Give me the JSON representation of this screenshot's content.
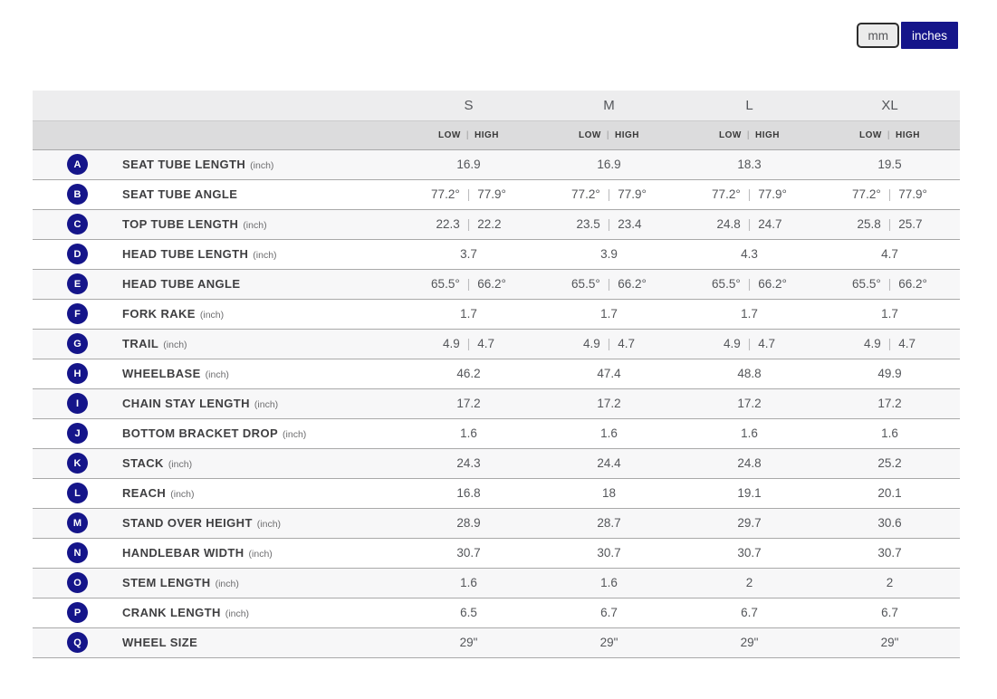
{
  "toggle": {
    "mm_label": "mm",
    "inches_label": "inches",
    "active": "inches"
  },
  "colors": {
    "accent_navy": "#15158a",
    "header_bg": "#ededee",
    "subheader_bg": "#dcdcdd",
    "zebra_bg": "#f7f7f8"
  },
  "table": {
    "sizes": [
      "S",
      "M",
      "L",
      "XL"
    ],
    "subheader": {
      "low": "LOW",
      "separator": "|",
      "high": "HIGH"
    },
    "rows": [
      {
        "letter": "A",
        "label": "SEAT TUBE LENGTH",
        "unit": "(inch)",
        "values": [
          [
            "16.9"
          ],
          [
            "16.9"
          ],
          [
            "18.3"
          ],
          [
            "19.5"
          ]
        ]
      },
      {
        "letter": "B",
        "label": "SEAT TUBE ANGLE",
        "unit": "",
        "values": [
          [
            "77.2°",
            "77.9°"
          ],
          [
            "77.2°",
            "77.9°"
          ],
          [
            "77.2°",
            "77.9°"
          ],
          [
            "77.2°",
            "77.9°"
          ]
        ]
      },
      {
        "letter": "C",
        "label": "TOP TUBE LENGTH",
        "unit": "(inch)",
        "values": [
          [
            "22.3",
            "22.2"
          ],
          [
            "23.5",
            "23.4"
          ],
          [
            "24.8",
            "24.7"
          ],
          [
            "25.8",
            "25.7"
          ]
        ]
      },
      {
        "letter": "D",
        "label": "HEAD TUBE LENGTH",
        "unit": "(inch)",
        "values": [
          [
            "3.7"
          ],
          [
            "3.9"
          ],
          [
            "4.3"
          ],
          [
            "4.7"
          ]
        ]
      },
      {
        "letter": "E",
        "label": "HEAD TUBE ANGLE",
        "unit": "",
        "values": [
          [
            "65.5°",
            "66.2°"
          ],
          [
            "65.5°",
            "66.2°"
          ],
          [
            "65.5°",
            "66.2°"
          ],
          [
            "65.5°",
            "66.2°"
          ]
        ]
      },
      {
        "letter": "F",
        "label": "FORK RAKE",
        "unit": "(inch)",
        "values": [
          [
            "1.7"
          ],
          [
            "1.7"
          ],
          [
            "1.7"
          ],
          [
            "1.7"
          ]
        ]
      },
      {
        "letter": "G",
        "label": "TRAIL",
        "unit": "(inch)",
        "values": [
          [
            "4.9",
            "4.7"
          ],
          [
            "4.9",
            "4.7"
          ],
          [
            "4.9",
            "4.7"
          ],
          [
            "4.9",
            "4.7"
          ]
        ]
      },
      {
        "letter": "H",
        "label": "WHEELBASE",
        "unit": "(inch)",
        "values": [
          [
            "46.2"
          ],
          [
            "47.4"
          ],
          [
            "48.8"
          ],
          [
            "49.9"
          ]
        ]
      },
      {
        "letter": "I",
        "label": "CHAIN STAY LENGTH",
        "unit": "(inch)",
        "values": [
          [
            "17.2"
          ],
          [
            "17.2"
          ],
          [
            "17.2"
          ],
          [
            "17.2"
          ]
        ]
      },
      {
        "letter": "J",
        "label": "BOTTOM BRACKET DROP",
        "unit": "(inch)",
        "values": [
          [
            "1.6"
          ],
          [
            "1.6"
          ],
          [
            "1.6"
          ],
          [
            "1.6"
          ]
        ]
      },
      {
        "letter": "K",
        "label": "STACK",
        "unit": "(inch)",
        "values": [
          [
            "24.3"
          ],
          [
            "24.4"
          ],
          [
            "24.8"
          ],
          [
            "25.2"
          ]
        ]
      },
      {
        "letter": "L",
        "label": "REACH",
        "unit": "(inch)",
        "values": [
          [
            "16.8"
          ],
          [
            "18"
          ],
          [
            "19.1"
          ],
          [
            "20.1"
          ]
        ]
      },
      {
        "letter": "M",
        "label": "STAND OVER HEIGHT",
        "unit": "(inch)",
        "values": [
          [
            "28.9"
          ],
          [
            "28.7"
          ],
          [
            "29.7"
          ],
          [
            "30.6"
          ]
        ]
      },
      {
        "letter": "N",
        "label": "HANDLEBAR WIDTH",
        "unit": "(inch)",
        "values": [
          [
            "30.7"
          ],
          [
            "30.7"
          ],
          [
            "30.7"
          ],
          [
            "30.7"
          ]
        ]
      },
      {
        "letter": "O",
        "label": "STEM LENGTH",
        "unit": "(inch)",
        "values": [
          [
            "1.6"
          ],
          [
            "1.6"
          ],
          [
            "2"
          ],
          [
            "2"
          ]
        ]
      },
      {
        "letter": "P",
        "label": "CRANK LENGTH",
        "unit": "(inch)",
        "values": [
          [
            "6.5"
          ],
          [
            "6.7"
          ],
          [
            "6.7"
          ],
          [
            "6.7"
          ]
        ]
      },
      {
        "letter": "Q",
        "label": "WHEEL SIZE",
        "unit": "",
        "values": [
          [
            "29\""
          ],
          [
            "29\""
          ],
          [
            "29\""
          ],
          [
            "29\""
          ]
        ]
      }
    ]
  }
}
